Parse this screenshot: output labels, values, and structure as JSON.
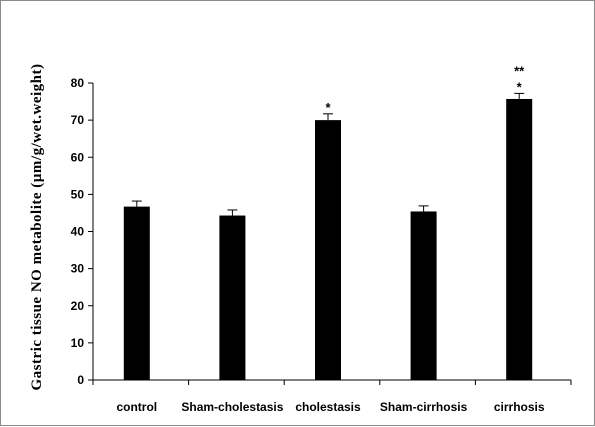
{
  "chart_data": {
    "type": "bar",
    "title": "",
    "xlabel": "",
    "ylabel": "Gastric tissue NO metabolite (µm/g/wet.weight)",
    "ylim": [
      0,
      80
    ],
    "yticks": [
      0,
      10,
      20,
      30,
      40,
      50,
      60,
      70,
      80
    ],
    "grid": false,
    "legend": "none",
    "categories": [
      "control",
      "Sham-cholestasis",
      "cholestasis",
      "Sham-cirrhosis",
      "cirrhosis"
    ],
    "values": [
      46.7,
      44.3,
      70.0,
      45.4,
      75.7
    ],
    "errors": [
      1.5,
      1.5,
      1.7,
      1.5,
      1.5
    ],
    "annotations": [
      [],
      [],
      [
        "*"
      ],
      [],
      [
        "**",
        "*"
      ]
    ],
    "bar_color": "#000000"
  }
}
